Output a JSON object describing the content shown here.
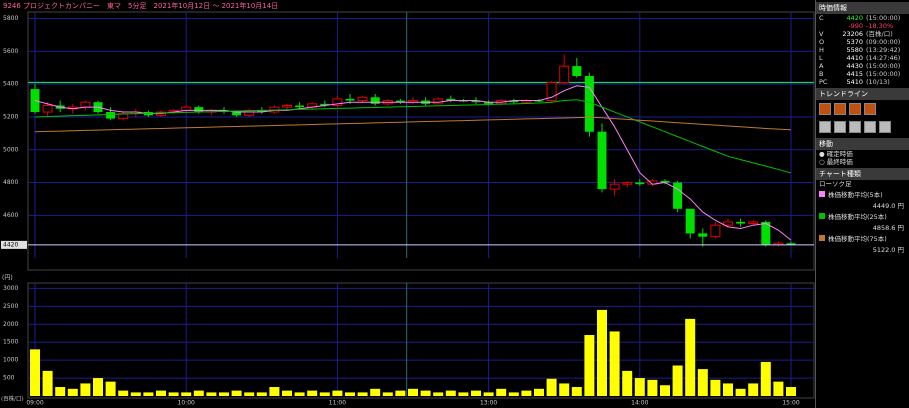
{
  "chart_data": {
    "type": "candlestick",
    "title": "9246 プロジェクトカンパニー　東マ　5分足　2021年10月12日 ～ 2021年10月14日",
    "price_unit": "(円)",
    "volume_unit": "(百株/口)",
    "categories": [
      "09:00",
      null,
      null,
      null,
      null,
      null,
      null,
      null,
      null,
      null,
      null,
      null,
      "10:00",
      null,
      null,
      null,
      null,
      null,
      null,
      null,
      null,
      null,
      null,
      null,
      "11:00",
      null,
      null,
      null,
      null,
      null,
      null,
      null,
      null,
      null,
      null,
      null,
      "13:00",
      null,
      null,
      null,
      null,
      null,
      null,
      null,
      null,
      null,
      null,
      null,
      "14:00",
      null,
      null,
      null,
      null,
      null,
      null,
      null,
      null,
      null,
      null,
      null,
      "15:00"
    ],
    "open": [
      5370,
      5230,
      5270,
      5250,
      5260,
      5290,
      5230,
      5190,
      5220,
      5230,
      5210,
      5230,
      5240,
      5260,
      5230,
      5240,
      5230,
      5210,
      5240,
      5230,
      5260,
      5270,
      5260,
      5280,
      5270,
      5310,
      5300,
      5320,
      5280,
      5300,
      5290,
      5300,
      5280,
      5310,
      5300,
      5300,
      5290,
      5280,
      5300,
      5290,
      5300,
      5300,
      5410,
      5510,
      5450,
      5110,
      4760,
      4790,
      4800,
      4790,
      4810,
      4800,
      4640,
      4490,
      4470,
      4540,
      4560,
      4550,
      4560,
      4420,
      4430
    ],
    "high": [
      5400,
      5290,
      5300,
      5280,
      5300,
      5300,
      5260,
      5230,
      5250,
      5240,
      5240,
      5250,
      5270,
      5270,
      5250,
      5260,
      5240,
      5250,
      5260,
      5270,
      5280,
      5290,
      5290,
      5300,
      5330,
      5340,
      5330,
      5340,
      5310,
      5310,
      5320,
      5320,
      5320,
      5330,
      5310,
      5320,
      5300,
      5310,
      5310,
      5310,
      5310,
      5420,
      5580,
      5560,
      5470,
      5160,
      4820,
      4810,
      4820,
      4820,
      4820,
      4810,
      4640,
      4520,
      4560,
      4580,
      4580,
      4570,
      4570,
      4440,
      4440
    ],
    "low": [
      5220,
      5200,
      5230,
      5220,
      5240,
      5220,
      5180,
      5180,
      5200,
      5200,
      5200,
      5220,
      5230,
      5220,
      5210,
      5220,
      5200,
      5200,
      5220,
      5220,
      5240,
      5250,
      5250,
      5260,
      5260,
      5280,
      5290,
      5270,
      5270,
      5280,
      5280,
      5270,
      5280,
      5290,
      5290,
      5280,
      5270,
      5270,
      5280,
      5280,
      5290,
      5290,
      5400,
      5440,
      5080,
      4740,
      4720,
      4770,
      4780,
      4780,
      4790,
      4620,
      4460,
      4410,
      4460,
      4530,
      4530,
      4540,
      4410,
      4410,
      4420
    ],
    "close": [
      5230,
      5270,
      5250,
      5260,
      5290,
      5230,
      5190,
      5220,
      5230,
      5210,
      5230,
      5240,
      5260,
      5230,
      5240,
      5230,
      5210,
      5240,
      5230,
      5260,
      5270,
      5260,
      5280,
      5270,
      5310,
      5300,
      5320,
      5280,
      5300,
      5290,
      5300,
      5280,
      5310,
      5300,
      5300,
      5290,
      5280,
      5300,
      5290,
      5300,
      5300,
      5410,
      5510,
      5450,
      5110,
      4760,
      4790,
      4800,
      4790,
      4810,
      4800,
      4640,
      4490,
      4470,
      4540,
      4560,
      4550,
      4560,
      4420,
      4430,
      4420
    ],
    "volume": [
      1300,
      700,
      250,
      200,
      350,
      500,
      400,
      150,
      100,
      100,
      150,
      100,
      100,
      150,
      100,
      100,
      150,
      100,
      100,
      250,
      150,
      100,
      150,
      100,
      150,
      100,
      100,
      200,
      100,
      150,
      200,
      150,
      100,
      150,
      100,
      150,
      100,
      200,
      100,
      150,
      200,
      480,
      350,
      250,
      1700,
      2400,
      1800,
      700,
      500,
      450,
      300,
      850,
      2150,
      750,
      450,
      350,
      200,
      350,
      950,
      400,
      250
    ],
    "ma": [
      {
        "name": "株価移動平均(5本)",
        "color": "#ff80ff",
        "current": "4449.0 円",
        "values": [
          5300,
          5280,
          5260,
          5250,
          5260,
          5260,
          5240,
          5230,
          5230,
          5220,
          5220,
          5230,
          5240,
          5240,
          5240,
          5240,
          5230,
          5230,
          5230,
          5240,
          5240,
          5250,
          5260,
          5270,
          5280,
          5290,
          5290,
          5290,
          5290,
          5290,
          5290,
          5290,
          5290,
          5300,
          5300,
          5300,
          5290,
          5290,
          5300,
          5300,
          5300,
          5320,
          5360,
          5390,
          5380,
          5260,
          5140,
          5000,
          4860,
          4790,
          4800,
          4760,
          4700,
          4620,
          4570,
          4530,
          4520,
          4540,
          4550,
          4510,
          4449.0
        ]
      },
      {
        "name": "株価移動平均(25本)",
        "color": "#00c000",
        "current": "4858.6 円",
        "values": [
          5200,
          5203,
          5205,
          5208,
          5210,
          5213,
          5215,
          5218,
          5220,
          5222,
          5224,
          5226,
          5228,
          5230,
          5232,
          5234,
          5236,
          5238,
          5240,
          5242,
          5244,
          5246,
          5248,
          5250,
          5252,
          5254,
          5256,
          5258,
          5260,
          5262,
          5264,
          5266,
          5268,
          5270,
          5272,
          5274,
          5276,
          5278,
          5280,
          5282,
          5285,
          5290,
          5300,
          5305,
          5290,
          5260,
          5230,
          5200,
          5170,
          5140,
          5110,
          5080,
          5050,
          5020,
          4990,
          4960,
          4940,
          4920,
          4900,
          4880,
          4858.6
        ]
      },
      {
        "name": "株価移動平均(75本)",
        "color": "#c07830",
        "current": "5122.0 円",
        "values": [
          5110,
          5112,
          5114,
          5116,
          5118,
          5120,
          5122,
          5124,
          5126,
          5128,
          5130,
          5132,
          5134,
          5136,
          5138,
          5140,
          5142,
          5144,
          5146,
          5148,
          5150,
          5152,
          5154,
          5156,
          5158,
          5160,
          5162,
          5164,
          5166,
          5168,
          5170,
          5172,
          5174,
          5176,
          5178,
          5180,
          5182,
          5184,
          5186,
          5188,
          5190,
          5192,
          5194,
          5196,
          5198,
          5195,
          5190,
          5185,
          5180,
          5175,
          5170,
          5165,
          5160,
          5155,
          5150,
          5145,
          5140,
          5135,
          5130,
          5126,
          5122.0
        ]
      }
    ],
    "up_color": "#e00000",
    "down_color": "#00e000",
    "volume_color": "#ffff00",
    "last_price": 4420,
    "prev_close": 5410,
    "ylim": [
      4340,
      5840
    ],
    "yticks": [
      4600,
      4800,
      5000,
      5200,
      5400,
      5600,
      5800
    ],
    "vol_ylim": [
      0,
      3150
    ],
    "vol_yticks": [
      500,
      1000,
      1500,
      2000,
      2500,
      3000
    ],
    "grid": true
  },
  "side_panel": {
    "quote_title": "時価情報",
    "quote_rows": [
      [
        "C",
        "4420",
        "(15:00:00)"
      ],
      [
        "",
        "-990",
        "-18.30%"
      ],
      [
        "V",
        "23206",
        "(百株/口)"
      ],
      [
        "O",
        "5370",
        "(09:00:00)"
      ],
      [
        "H",
        "5580",
        "(13:29:42)"
      ],
      [
        "L",
        "4410",
        "(14:27:46)"
      ],
      [
        "A",
        "4430",
        "(15:00:00)"
      ],
      [
        "B",
        "4415",
        "(15:00:00)"
      ],
      [
        "PC",
        "5410",
        "(10/13)"
      ]
    ],
    "trend_title": "トレンドライン",
    "move_title": "移動",
    "options": [
      "● 確定時価",
      "○ 最終時価"
    ],
    "chart_kind_title": "チャート種類",
    "chart_kind": "ローソク足"
  }
}
